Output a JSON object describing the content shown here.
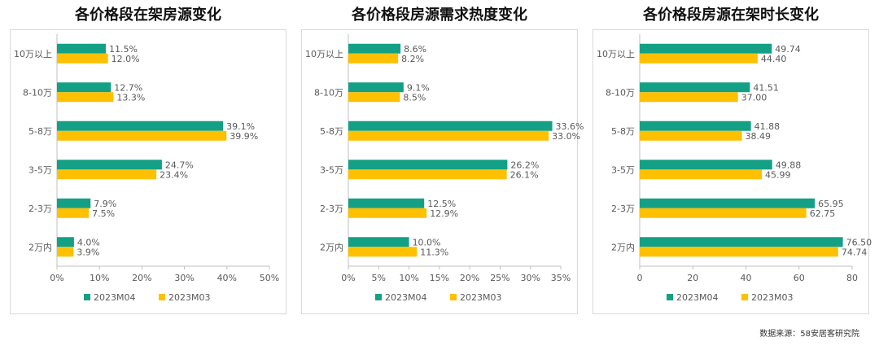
{
  "colors": {
    "series1": "#14a085",
    "series2": "#ffc000",
    "axis": "#bfbfbf",
    "text": "#595959"
  },
  "source_text": "数据来源：58安居客研究院",
  "chart_data": [
    {
      "type": "bar",
      "orientation": "horizontal",
      "title": "各价格段在架房源变化",
      "categories": [
        "10万以上",
        "8-10万",
        "5-8万",
        "3-5万",
        "2-3万",
        "2万内"
      ],
      "series": [
        {
          "name": "2023M04",
          "values": [
            11.5,
            12.7,
            39.1,
            24.7,
            7.9,
            4.0
          ],
          "labels": [
            "11.5%",
            "12.7%",
            "39.1%",
            "24.7%",
            "7.9%",
            "4.0%"
          ]
        },
        {
          "name": "2023M03",
          "values": [
            12.0,
            13.3,
            39.9,
            23.4,
            7.5,
            3.9
          ],
          "labels": [
            "12.0%",
            "13.3%",
            "39.9%",
            "23.4%",
            "7.5%",
            "3.9%"
          ]
        }
      ],
      "xlim": [
        0,
        50
      ],
      "ticks": [
        0,
        10,
        20,
        30,
        40,
        50
      ],
      "tick_labels": [
        "0%",
        "10%",
        "20%",
        "30%",
        "40%",
        "50%"
      ],
      "grid": false,
      "legend": "bottom"
    },
    {
      "type": "bar",
      "orientation": "horizontal",
      "title": "各价格段房源需求热度变化",
      "categories": [
        "10万以上",
        "8-10万",
        "5-8万",
        "3-5万",
        "2-3万",
        "2万内"
      ],
      "series": [
        {
          "name": "2023M04",
          "values": [
            8.6,
            9.1,
            33.6,
            26.2,
            12.5,
            10.0
          ],
          "labels": [
            "8.6%",
            "9.1%",
            "33.6%",
            "26.2%",
            "12.5%",
            "10.0%"
          ]
        },
        {
          "name": "2023M03",
          "values": [
            8.2,
            8.5,
            33.0,
            26.1,
            12.9,
            11.3
          ],
          "labels": [
            "8.2%",
            "8.5%",
            "33.0%",
            "26.1%",
            "12.9%",
            "11.3%"
          ]
        }
      ],
      "xlim": [
        0,
        35
      ],
      "ticks": [
        0,
        5,
        10,
        15,
        20,
        25,
        30,
        35
      ],
      "tick_labels": [
        "0%",
        "5%",
        "10%",
        "15%",
        "20%",
        "25%",
        "30%",
        "35%"
      ],
      "grid": false,
      "legend": "bottom"
    },
    {
      "type": "bar",
      "orientation": "horizontal",
      "title": "各价格段房源在架时长变化",
      "categories": [
        "10万以上",
        "8-10万",
        "5-8万",
        "3-5万",
        "2-3万",
        "2万内"
      ],
      "series": [
        {
          "name": "2023M04",
          "values": [
            49.74,
            41.51,
            41.88,
            49.88,
            65.95,
            76.5
          ],
          "labels": [
            "49.74",
            "41.51",
            "41.88",
            "49.88",
            "65.95",
            "76.50"
          ]
        },
        {
          "name": "2023M03",
          "values": [
            44.4,
            37.0,
            38.49,
            45.99,
            62.75,
            74.74
          ],
          "labels": [
            "44.40",
            "37.00",
            "38.49",
            "45.99",
            "62.75",
            "74.74"
          ]
        }
      ],
      "xlim": [
        0,
        80
      ],
      "ticks": [
        0,
        20,
        40,
        60,
        80
      ],
      "tick_labels": [
        "0",
        "20",
        "40",
        "60",
        "80"
      ],
      "grid": false,
      "legend": "bottom"
    }
  ]
}
